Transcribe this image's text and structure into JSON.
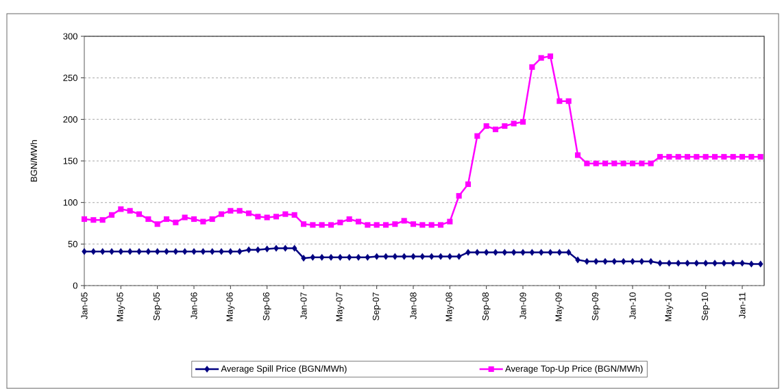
{
  "chart_data": {
    "type": "line",
    "ylabel": "BGN/MWh",
    "categories": [
      "Jan-05",
      null,
      null,
      null,
      "May-05",
      null,
      null,
      null,
      "Sep-05",
      null,
      null,
      null,
      "Jan-06",
      null,
      null,
      null,
      "May-06",
      null,
      null,
      null,
      "Sep-06",
      null,
      null,
      null,
      "Jan-07",
      null,
      null,
      null,
      "May-07",
      null,
      null,
      null,
      "Sep-07",
      null,
      null,
      null,
      "Jan-08",
      null,
      null,
      null,
      "May-08",
      null,
      null,
      null,
      "Sep-08",
      null,
      null,
      null,
      "Jan-09",
      null,
      null,
      null,
      "May-09",
      null,
      null,
      null,
      "Sep-09",
      null,
      null,
      null,
      "Jan-10",
      null,
      null,
      null,
      "May-10",
      null,
      null,
      null,
      "Sep-10",
      null,
      null,
      null,
      "Jan-11",
      null,
      null
    ],
    "series": [
      {
        "name": "Average Spill Price (BGN/MWh)",
        "color": "#000080",
        "marker": "diamond",
        "values": [
          41,
          41,
          41,
          41,
          41,
          41,
          41,
          41,
          41,
          41,
          41,
          41,
          41,
          41,
          41,
          41,
          41,
          41,
          43,
          43,
          44,
          45,
          45,
          45,
          33,
          34,
          34,
          34,
          34,
          34,
          34,
          34,
          35,
          35,
          35,
          35,
          35,
          35,
          35,
          35,
          35,
          35,
          40,
          40,
          40,
          40,
          40,
          40,
          40,
          40,
          40,
          40,
          40,
          40,
          31,
          29,
          29,
          29,
          29,
          29,
          29,
          29,
          29,
          27,
          27,
          27,
          27,
          27,
          27,
          27,
          27,
          27,
          27,
          26,
          26
        ]
      },
      {
        "name": "Average Top-Up Price (BGN/MWh)",
        "color": "#ff00ff",
        "marker": "square",
        "values": [
          80,
          79,
          79,
          85,
          92,
          90,
          86,
          80,
          74,
          80,
          76,
          82,
          80,
          77,
          80,
          86,
          90,
          90,
          87,
          83,
          82,
          83,
          86,
          85,
          74,
          73,
          73,
          73,
          76,
          80,
          77,
          73,
          73,
          73,
          74,
          78,
          74,
          73,
          73,
          73,
          77,
          108,
          122,
          180,
          192,
          188,
          192,
          195,
          197,
          263,
          274,
          276,
          222,
          222,
          157,
          147,
          147,
          147,
          147,
          147,
          147,
          147,
          147,
          155,
          155,
          155,
          155,
          155,
          155,
          155,
          155,
          155,
          155,
          155,
          155
        ]
      }
    ],
    "ylim": [
      0,
      300
    ],
    "yticks": [
      0,
      50,
      100,
      150,
      200,
      250,
      300
    ],
    "grid": "y",
    "legend": "bottom",
    "line_style": "solid"
  }
}
